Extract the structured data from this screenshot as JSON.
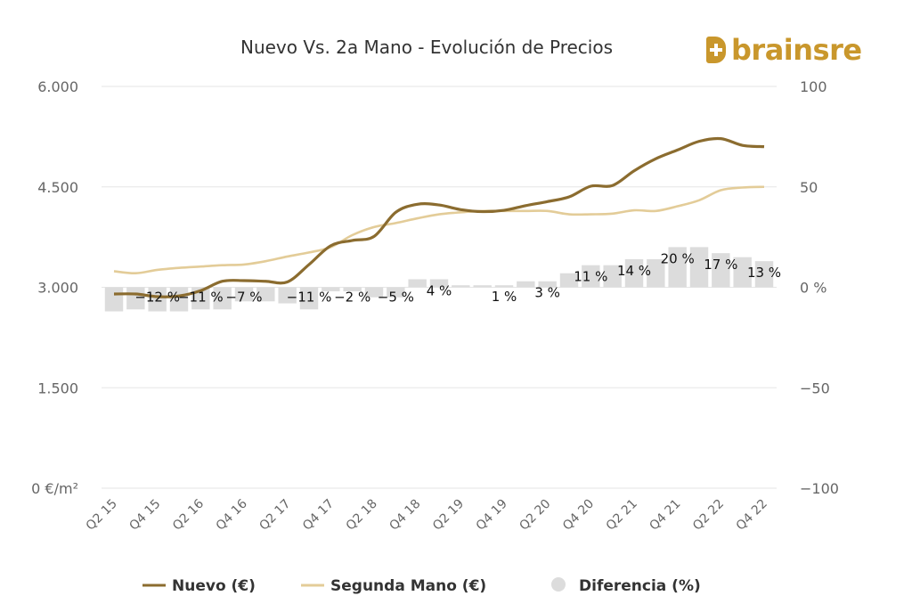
{
  "brand": {
    "name": "brainsre",
    "color": "#c9972c"
  },
  "chart_data": {
    "type": "line",
    "title": "Nuevo Vs. 2a Mano - Evolución de Precios",
    "x": [
      "Q2 15",
      "Q3 15",
      "Q4 15",
      "Q1 16",
      "Q2 16",
      "Q3 16",
      "Q4 16",
      "Q1 17",
      "Q2 17",
      "Q3 17",
      "Q4 17",
      "Q1 18",
      "Q2 18",
      "Q3 18",
      "Q4 18",
      "Q1 19",
      "Q2 19",
      "Q3 19",
      "Q4 19",
      "Q1 20",
      "Q2 20",
      "Q3 20",
      "Q4 20",
      "Q1 21",
      "Q2 21",
      "Q3 21",
      "Q4 21",
      "Q1 22",
      "Q2 22",
      "Q3 22",
      "Q4 22"
    ],
    "xtick_labels": [
      "Q2 15",
      "Q4 15",
      "Q2 16",
      "Q4 16",
      "Q2 17",
      "Q4 17",
      "Q2 18",
      "Q4 18",
      "Q2 19",
      "Q4 19",
      "Q2 20",
      "Q4 20",
      "Q2 21",
      "Q4 21",
      "Q2 22",
      "Q4 22"
    ],
    "series": [
      {
        "name": "Nuevo (€)",
        "type": "line",
        "axis": "left",
        "color": "#8b6c2f",
        "values": [
          2900,
          2900,
          2860,
          2870,
          2950,
          3090,
          3100,
          3090,
          3080,
          3340,
          3620,
          3700,
          3760,
          4120,
          4240,
          4230,
          4160,
          4130,
          4150,
          4220,
          4280,
          4350,
          4510,
          4520,
          4740,
          4920,
          5050,
          5180,
          5220,
          5120,
          5100
        ]
      },
      {
        "name": "Segunda Mano (€)",
        "type": "line",
        "axis": "left",
        "color": "#e3cc98",
        "values": [
          3240,
          3210,
          3260,
          3290,
          3310,
          3330,
          3340,
          3390,
          3460,
          3520,
          3600,
          3780,
          3900,
          3960,
          4030,
          4090,
          4120,
          4140,
          4140,
          4140,
          4140,
          4090,
          4090,
          4100,
          4150,
          4140,
          4210,
          4300,
          4450,
          4490,
          4500
        ]
      },
      {
        "name": "Diferencia (%)",
        "type": "bar",
        "axis": "right",
        "color": "#dcdcdc",
        "values": [
          -12,
          -11,
          -12,
          -12,
          -11,
          -11,
          -7,
          -7,
          -8,
          -11,
          -2,
          -2,
          -5,
          -5,
          4,
          4,
          1,
          1,
          1,
          3,
          3,
          7,
          11,
          11,
          14,
          14,
          20,
          20,
          17,
          15,
          13
        ]
      }
    ],
    "data_labels": [
      {
        "index": 2,
        "text": "-12 %"
      },
      {
        "index": 4,
        "text": "-11 %"
      },
      {
        "index": 6,
        "text": "-7 %"
      },
      {
        "index": 9,
        "text": "-11 %"
      },
      {
        "index": 11,
        "text": "-2 %"
      },
      {
        "index": 13,
        "text": "-5 %"
      },
      {
        "index": 15,
        "text": "4 %"
      },
      {
        "index": 18,
        "text": "1 %"
      },
      {
        "index": 20,
        "text": "3 %"
      },
      {
        "index": 22,
        "text": "11 %"
      },
      {
        "index": 24,
        "text": "14 %"
      },
      {
        "index": 26,
        "text": "20 %"
      },
      {
        "index": 28,
        "text": "17 %"
      },
      {
        "index": 30,
        "text": "13 %"
      }
    ],
    "y_left": {
      "label": "€/m²",
      "ylim": [
        0,
        6000
      ],
      "ticks": [
        0,
        1500,
        3000,
        4500,
        6000
      ],
      "tick_labels": [
        "0 €/m²",
        "1.500",
        "3.000",
        "4.500",
        "6.000"
      ]
    },
    "y_right": {
      "label": "%",
      "ylim": [
        -100,
        100
      ],
      "ticks": [
        -100,
        -50,
        0,
        50,
        100
      ],
      "tick_labels": [
        "-100",
        "-50",
        "0 %",
        "50",
        "100"
      ]
    },
    "grid": true,
    "legend": {
      "position": "bottom",
      "entries": [
        "Nuevo (€)",
        "Segunda Mano (€)",
        "Diferencia (%)"
      ]
    }
  }
}
